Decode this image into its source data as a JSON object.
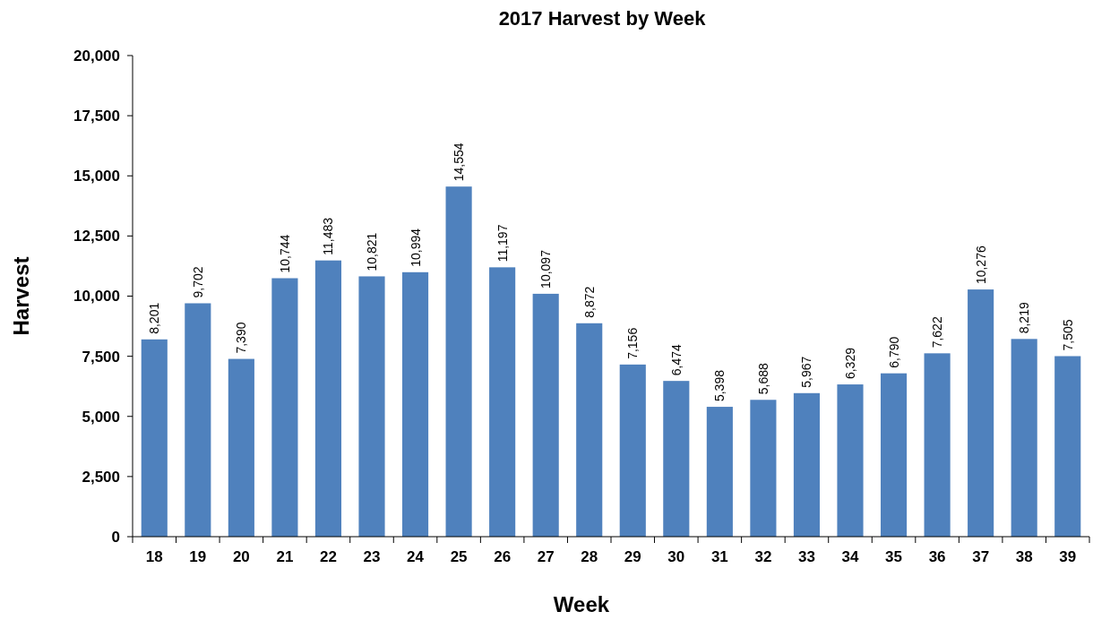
{
  "chart_data": {
    "type": "bar",
    "title": "2017 Harvest by Week",
    "xlabel": "Week",
    "ylabel": "Harvest",
    "categories": [
      "18",
      "19",
      "20",
      "21",
      "22",
      "23",
      "24",
      "25",
      "26",
      "27",
      "28",
      "29",
      "30",
      "31",
      "32",
      "33",
      "34",
      "35",
      "36",
      "37",
      "38",
      "39"
    ],
    "values": [
      8201,
      9702,
      7390,
      10744,
      11483,
      10821,
      10994,
      14554,
      11197,
      10097,
      8872,
      7156,
      6474,
      5398,
      5688,
      5967,
      6329,
      6790,
      7622,
      10276,
      8219,
      7505
    ],
    "color": "#4f81bd",
    "ylim": [
      0,
      20000
    ],
    "yticks": [
      {
        "value": 0,
        "label": "0"
      },
      {
        "value": 2500,
        "label": "2,500"
      },
      {
        "value": 5000,
        "label": "5,000"
      },
      {
        "value": 7500,
        "label": "7,500"
      },
      {
        "value": 10000,
        "label": "10,000"
      },
      {
        "value": 12500,
        "label": "12,500"
      },
      {
        "value": 15000,
        "label": "15,000"
      },
      {
        "value": 17500,
        "label": "17,500"
      },
      {
        "value": 20000,
        "label": "20,000"
      }
    ],
    "value_labels": [
      "8,201",
      "9,702",
      "7,390",
      "10,744",
      "11,483",
      "10,821",
      "10,994",
      "14,554",
      "11,197",
      "10,097",
      "8,872",
      "7,156",
      "6,474",
      "5,398",
      "5,688",
      "5,967",
      "6,329",
      "6,790",
      "7,622",
      "10,276",
      "8,219",
      "7,505"
    ],
    "grid": false
  }
}
